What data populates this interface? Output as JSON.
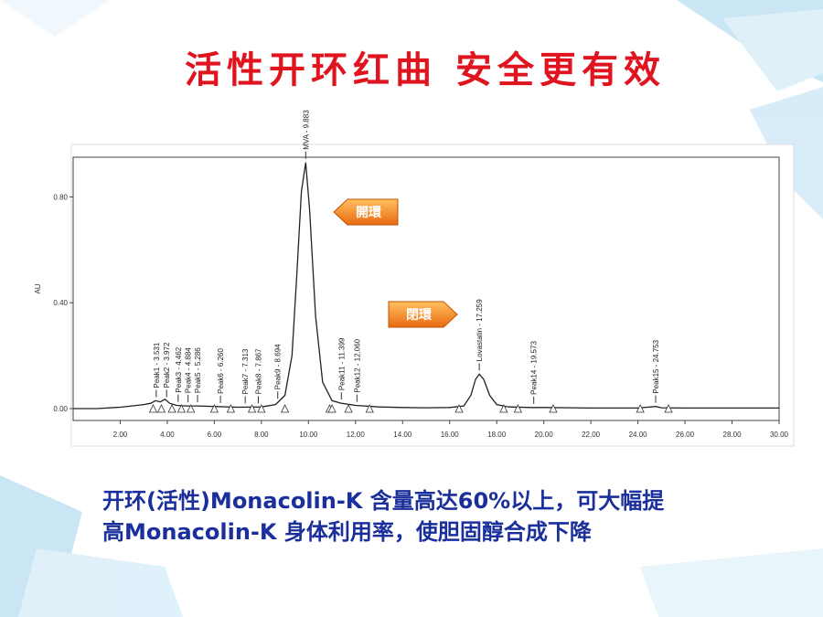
{
  "slide": {
    "title": "活性开环红曲  安全更有效",
    "body": [
      "开环(活性)Monacolin-K 含量高达60%以上，可大幅提",
      "高Monacolin-K 身体利用率，使胆固醇合成下降"
    ]
  },
  "chart_data": {
    "type": "line",
    "ylabel": "AU",
    "color": "#222222",
    "x": [
      0,
      1,
      2,
      2.5,
      3,
      3.3,
      3.5,
      3.7,
      3.9,
      4.1,
      4.4,
      4.8,
      5.3,
      6,
      7,
      8,
      8.6,
      9,
      9.3,
      9.5,
      9.7,
      9.883,
      10.05,
      10.3,
      10.6,
      11,
      11.4,
      12,
      13,
      14,
      15,
      16,
      16.6,
      16.9,
      17.1,
      17.259,
      17.45,
      17.7,
      18,
      18.5,
      19.5,
      20,
      22,
      24,
      24.753,
      25,
      26,
      28,
      30
    ],
    "values": [
      0,
      0,
      0.005,
      0.01,
      0.015,
      0.02,
      0.03,
      0.025,
      0.035,
      0.02,
      0.012,
      0.01,
      0.01,
      0.008,
      0.005,
      0.006,
      0.015,
      0.05,
      0.2,
      0.5,
      0.82,
      0.93,
      0.75,
      0.35,
      0.1,
      0.03,
      0.02,
      0.012,
      0.006,
      0.004,
      0.003,
      0.004,
      0.01,
      0.05,
      0.11,
      0.13,
      0.11,
      0.05,
      0.015,
      0.006,
      0.004,
      0.004,
      0.002,
      0.002,
      0.008,
      0.003,
      0.002,
      0.002,
      0.002
    ],
    "xlim": [
      0,
      30
    ],
    "ylim": [
      -0.045,
      0.95
    ],
    "xticks": [
      {
        "value": 2,
        "label": "2.00"
      },
      {
        "value": 4,
        "label": "4.00"
      },
      {
        "value": 6,
        "label": "6.00"
      },
      {
        "value": 8,
        "label": "8.00"
      },
      {
        "value": 10,
        "label": "10.00"
      },
      {
        "value": 12,
        "label": "12.00"
      },
      {
        "value": 14,
        "label": "14.00"
      },
      {
        "value": 16,
        "label": "16.00"
      },
      {
        "value": 18,
        "label": "18.00"
      },
      {
        "value": 20,
        "label": "20.00"
      },
      {
        "value": 22,
        "label": "22.00"
      },
      {
        "value": 24,
        "label": "24.00"
      },
      {
        "value": 26,
        "label": "26.00"
      },
      {
        "value": 28,
        "label": "28.00"
      },
      {
        "value": 30,
        "label": "30.00"
      }
    ],
    "yticks": [
      {
        "value": 0,
        "label": "0.00"
      },
      {
        "value": 0.4,
        "label": "0.40"
      },
      {
        "value": 0.8,
        "label": "0.80"
      }
    ],
    "annotations": [
      {
        "label": "Peak1 - 3.531",
        "x": 3.531
      },
      {
        "label": "Peak2 - 3.972",
        "x": 3.972
      },
      {
        "label": "Peak3 - 4.462",
        "x": 4.462
      },
      {
        "label": "Peak4 - 4.884",
        "x": 4.884
      },
      {
        "label": "Peak5 - 5.286",
        "x": 5.286
      },
      {
        "label": "Peak6 - 6.260",
        "x": 6.26
      },
      {
        "label": "Peak7 - 7.313",
        "x": 7.313
      },
      {
        "label": "Peak8 - 7.867",
        "x": 7.867
      },
      {
        "label": "Peak9 - 8.694",
        "x": 8.694
      },
      {
        "label": "MVA - 9.883",
        "x": 9.883
      },
      {
        "label": "Peak11 - 11.399",
        "x": 11.399
      },
      {
        "label": "Peak12 - 12.060",
        "x": 12.06
      },
      {
        "label": "Lovastatin - 17.259",
        "x": 17.259
      },
      {
        "label": "Peak14 - 19.573",
        "x": 19.573
      },
      {
        "label": "Peak15 - 24.753",
        "x": 24.753
      }
    ],
    "baseline_marks": [
      3.4,
      3.75,
      4.2,
      4.6,
      5.0,
      6.0,
      6.7,
      7.6,
      8.0,
      9.0,
      10.9,
      11.0,
      11.7,
      12.6,
      16.4,
      18.3,
      18.9,
      20.4,
      24.1,
      25.3
    ],
    "callouts": [
      "開環",
      "閉環"
    ]
  }
}
